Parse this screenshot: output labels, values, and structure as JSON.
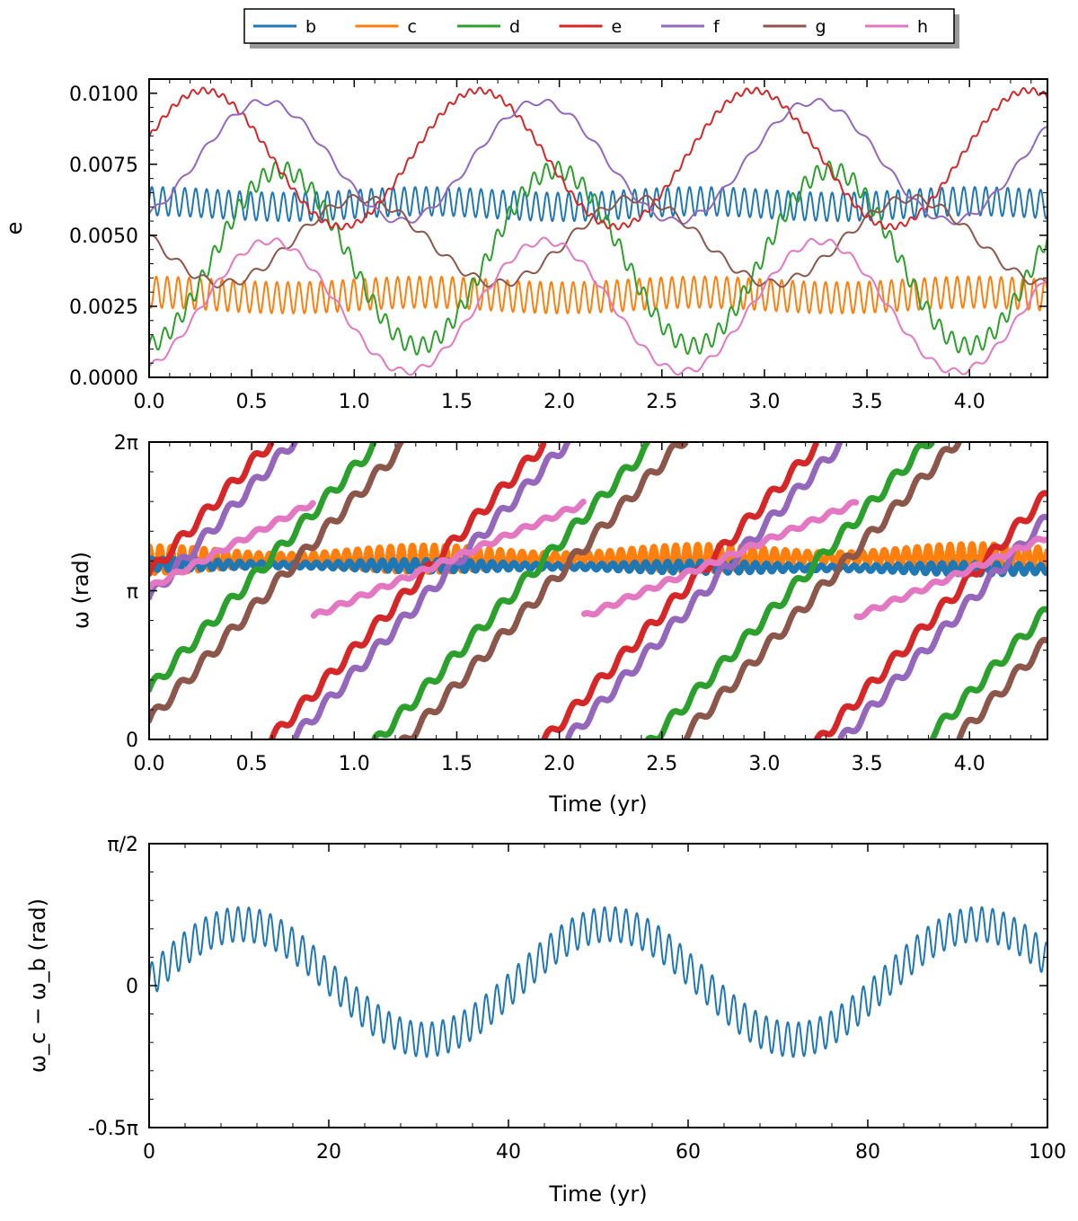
{
  "chart_data": [
    {
      "type": "line",
      "title": "",
      "xlabel": "",
      "ylabel": "e",
      "xlim": [
        0,
        4.38
      ],
      "ylim": [
        0,
        0.0105
      ],
      "xticks": [
        0,
        0.5,
        1,
        1.5,
        2,
        2.5,
        3,
        3.5,
        4
      ],
      "xtick_labels": [
        "0.0",
        "0.5",
        "1.0",
        "1.5",
        "2.0",
        "2.5",
        "3.0",
        "3.5",
        "4.0"
      ],
      "yticks": [
        0,
        0.0025,
        0.005,
        0.0075,
        0.01
      ],
      "ytick_labels": [
        "0.0000",
        "0.0025",
        "0.0050",
        "0.0075",
        "0.0100"
      ],
      "legend": {
        "location": "top-center",
        "entries": [
          "b",
          "c",
          "d",
          "e",
          "f",
          "g",
          "h"
        ]
      },
      "series": [
        {
          "name": "b",
          "color": "#1f77b4",
          "mean": 0.0061,
          "slow_amp": 0.0001,
          "slow_period": 1.34,
          "slow_phase": 0,
          "fast_amp": 0.0005,
          "fast_period": 0.0535,
          "fast_phase": 0
        },
        {
          "name": "c",
          "color": "#ff7f0e",
          "mean": 0.0029,
          "slow_amp": 0.0001,
          "slow_period": 1.34,
          "slow_phase": 1.0,
          "fast_amp": 0.00055,
          "fast_period": 0.0535,
          "fast_phase": 1.6
        },
        {
          "name": "d",
          "color": "#2ca02c",
          "mean": 0.0042,
          "slow_amp": 0.0031,
          "slow_period": 1.34,
          "slow_phase": 0.48,
          "fast_amp": 0.0003,
          "fast_period": 0.06,
          "fast_phase": 0
        },
        {
          "name": "e",
          "color": "#d62728",
          "mean": 0.0077,
          "slow_amp": 0.0024,
          "slow_period": 1.34,
          "slow_phase": 0.2,
          "fast_amp": 0.0001,
          "fast_period": 0.05,
          "fast_phase": 0
        },
        {
          "name": "f",
          "color": "#9467bd",
          "mean": 0.0076,
          "slow_amp": 0.0021,
          "slow_period": 1.34,
          "slow_phase": 0.42,
          "fast_amp": 0.00012,
          "fast_period": 0.12,
          "fast_phase": 0
        },
        {
          "name": "g",
          "color": "#8c564b",
          "mean": 0.0048,
          "slow_amp": 0.0015,
          "slow_period": 1.34,
          "slow_phase": 0.77,
          "fast_amp": 0.00015,
          "fast_period": 0.12,
          "fast_phase": 0
        },
        {
          "name": "h",
          "color": "#e377c2",
          "mean": 0.0025,
          "slow_amp": 0.0023,
          "slow_period": 1.34,
          "slow_phase": 0.44,
          "fast_amp": 0.00012,
          "fast_period": 0.1,
          "fast_phase": 0
        }
      ]
    },
    {
      "type": "scatter",
      "title": "",
      "xlabel": "Time (yr)",
      "ylabel": "ω (rad)",
      "xlim": [
        0,
        4.38
      ],
      "ylim": [
        0,
        6.2832
      ],
      "xticks": [
        0,
        0.5,
        1,
        1.5,
        2,
        2.5,
        3,
        3.5,
        4
      ],
      "xtick_labels": [
        "0.0",
        "0.5",
        "1.0",
        "1.5",
        "2.0",
        "2.5",
        "3.0",
        "3.5",
        "4.0"
      ],
      "yticks": [
        0,
        3.1416,
        6.2832
      ],
      "ytick_labels": [
        "0",
        "π",
        "2π"
      ],
      "series": [
        {
          "name": "b",
          "color": "#1f77b4",
          "mean": 3.7,
          "drift": -0.1,
          "band": 0.12
        },
        {
          "name": "c",
          "color": "#ff7f0e",
          "mean": 3.8,
          "drift": 0.05,
          "band": 0.28
        },
        {
          "name": "d",
          "color": "#2ca02c",
          "period": 1.34,
          "phase_at_zero": 1.05
        },
        {
          "name": "e",
          "color": "#d62728",
          "period": 1.34,
          "phase_at_zero": 3.5
        },
        {
          "name": "f",
          "color": "#9467bd",
          "period": 1.34,
          "phase_at_zero": 3.0
        },
        {
          "name": "g",
          "color": "#8c564b",
          "period": 1.34,
          "phase_at_zero": 0.4
        },
        {
          "name": "h",
          "color": "#e377c2",
          "low": 2.6,
          "high": 5.0,
          "jumps": [
            0.8,
            2.12,
            3.45
          ]
        }
      ]
    },
    {
      "type": "line",
      "title": "",
      "xlabel": "Time (yr)",
      "ylabel": "ω_c − ω_b (rad)",
      "xlim": [
        0,
        100
      ],
      "ylim": [
        -1.5708,
        1.5708
      ],
      "xticks": [
        0,
        20,
        40,
        60,
        80,
        100
      ],
      "xtick_labels": [
        "0",
        "20",
        "40",
        "60",
        "80",
        "100"
      ],
      "yticks": [
        -1.5708,
        0,
        1.5708
      ],
      "ytick_labels": [
        "-0.5π",
        "0",
        "π/2"
      ],
      "series": [
        {
          "name": "ωc − ωb",
          "color": "#1f77b4",
          "slow_amp": 0.64,
          "slow_period": 41,
          "fast_amp": 0.19,
          "fast_period": 1.2,
          "offset": 0.04
        }
      ]
    }
  ]
}
